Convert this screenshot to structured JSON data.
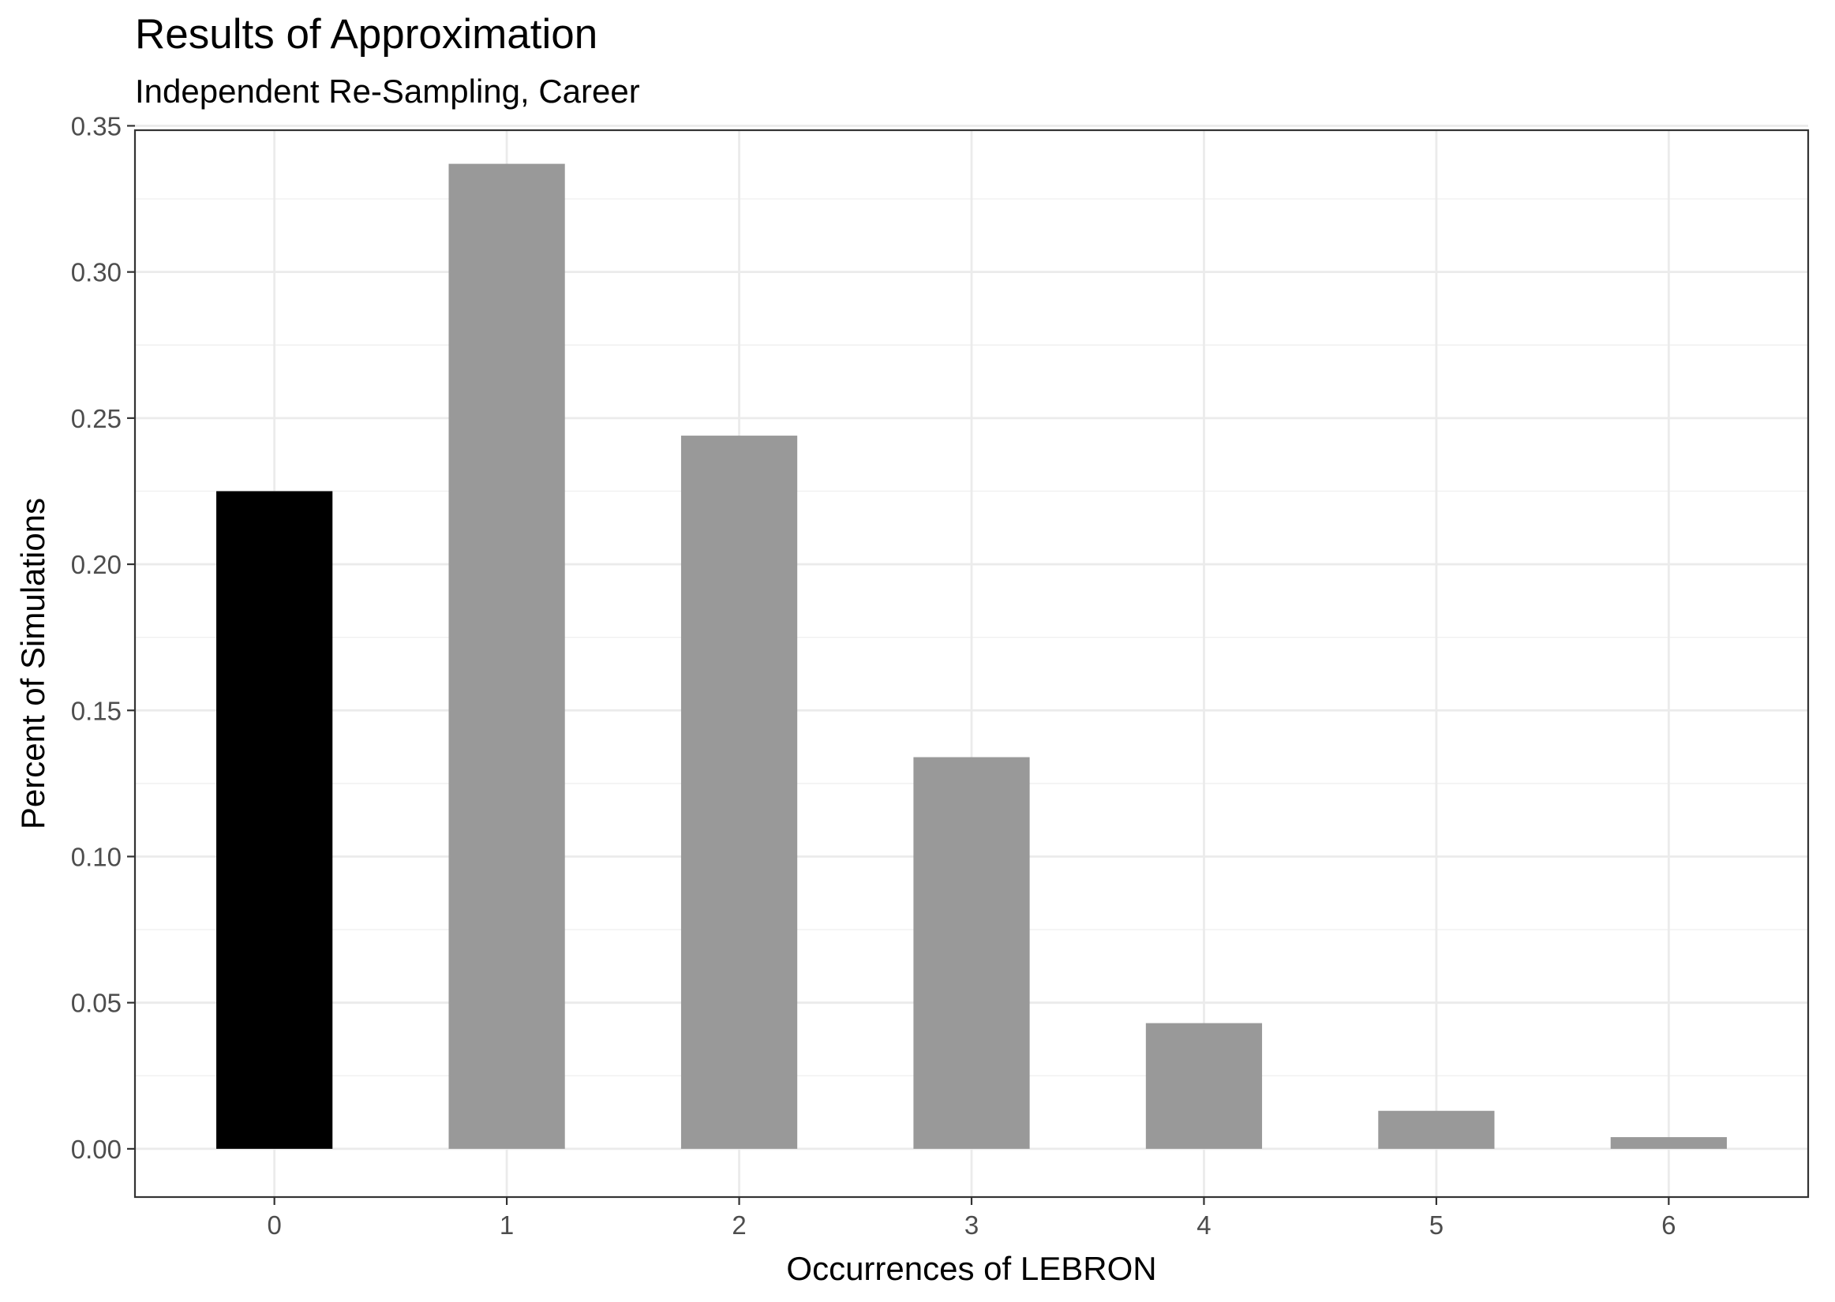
{
  "chart_data": {
    "type": "bar",
    "title": "Results of Approximation",
    "subtitle": "Independent Re-Sampling, Career",
    "xlabel": "Occurrences of LEBRON",
    "ylabel": "Percent of Simulations",
    "categories": [
      "0",
      "1",
      "2",
      "3",
      "4",
      "5",
      "6"
    ],
    "values": [
      0.225,
      0.337,
      0.244,
      0.134,
      0.043,
      0.013,
      0.004
    ],
    "bar_colors": [
      "#000000",
      "#999999",
      "#999999",
      "#999999",
      "#999999",
      "#999999",
      "#999999"
    ],
    "xlim": [
      -0.6,
      6.6
    ],
    "ylim": [
      -0.0165,
      0.3485
    ],
    "y_ticks": [
      0.0,
      0.05,
      0.1,
      0.15,
      0.2,
      0.25,
      0.3,
      0.35
    ],
    "y_tick_labels": [
      "0.00",
      "0.05",
      "0.10",
      "0.15",
      "0.20",
      "0.25",
      "0.30",
      "0.35"
    ],
    "grid": true,
    "legend": "none"
  }
}
